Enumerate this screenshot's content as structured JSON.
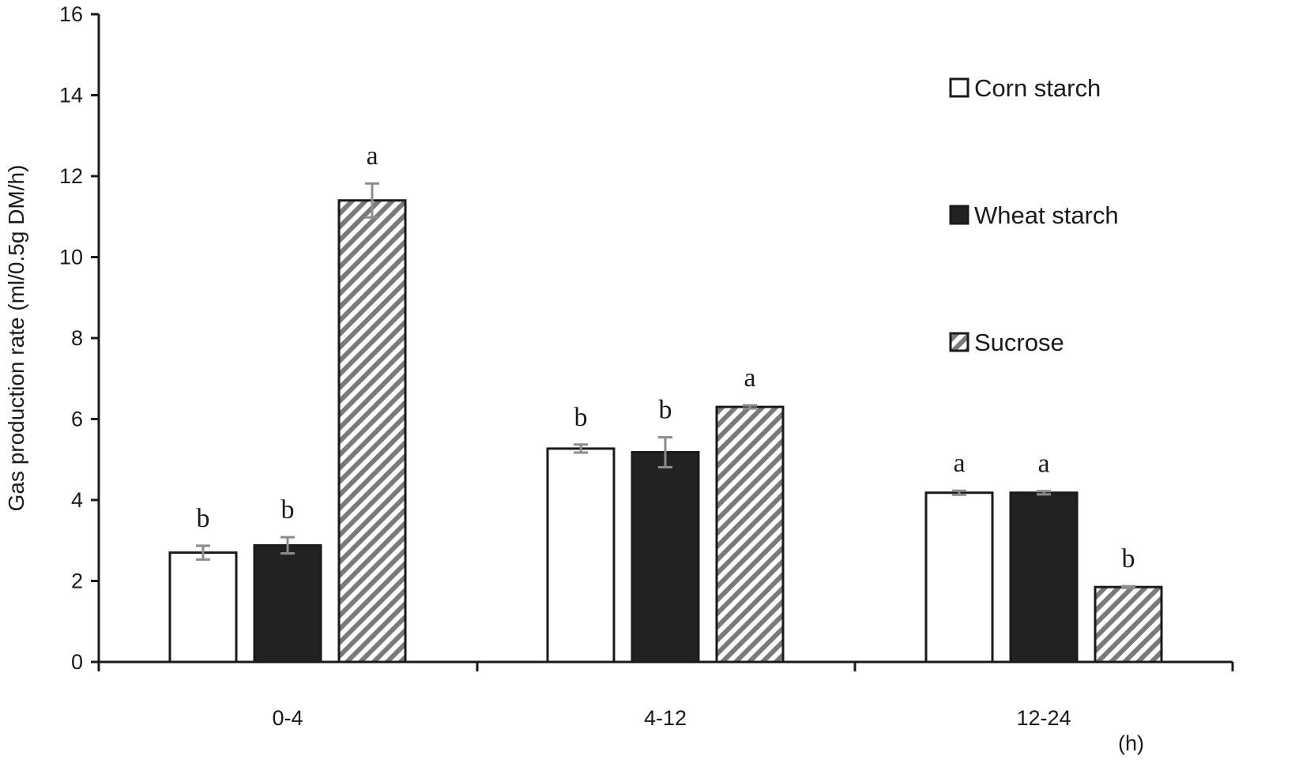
{
  "chart_data": {
    "type": "bar",
    "title": "",
    "xlabel": "",
    "x_unit": "(h)",
    "ylabel": "Gas production rate (ml/0.5g DM/h)",
    "ylim": [
      0,
      16
    ],
    "yticks": [
      0,
      2,
      4,
      6,
      8,
      10,
      12,
      14,
      16
    ],
    "categories": [
      "0-4",
      "4-12",
      "12-24"
    ],
    "grid": false,
    "legend_position": "right",
    "series": [
      {
        "name": "Corn starch",
        "fill": "white",
        "values": [
          2.7,
          5.27,
          4.18
        ],
        "errors": [
          0.17,
          0.1,
          0.05
        ],
        "sig_labels": [
          "b",
          "b",
          "a"
        ]
      },
      {
        "name": "Wheat starch",
        "fill": "black",
        "values": [
          2.88,
          5.18,
          4.18
        ],
        "errors": [
          0.2,
          0.37,
          0.04
        ],
        "sig_labels": [
          "b",
          "b",
          "a"
        ]
      },
      {
        "name": "Sucrose",
        "fill": "diagonal-hatch",
        "values": [
          11.4,
          6.3,
          1.85
        ],
        "errors": [
          0.42,
          0.04,
          0.02
        ],
        "sig_labels": [
          "a",
          "a",
          "b"
        ]
      }
    ],
    "colors": {
      "axis": "#1a1a1a",
      "bar_outline": "#1a1a1a",
      "black_fill": "#222222",
      "hatch_stripe": "#7a7a7a",
      "error_bar": "#8c8c8c"
    }
  }
}
